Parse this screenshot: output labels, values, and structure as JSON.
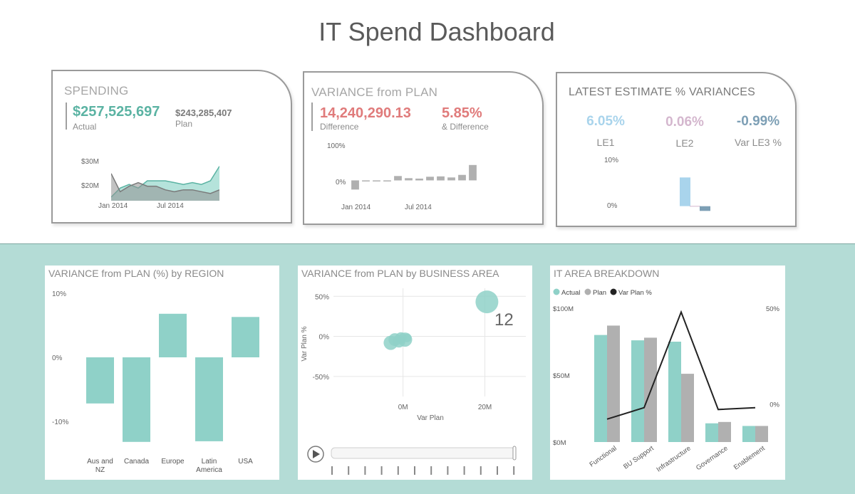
{
  "title": "IT Spend Dashboard",
  "colors": {
    "teal": "#8fd1c8",
    "gray": "#b0b0b0",
    "green_text": "#5bb3a3",
    "red_text": "#e07b7b",
    "le1": "#a9d4ec",
    "le2": "#d4b7ce",
    "le3": "#7d9fb5",
    "dark": "#222222"
  },
  "spending": {
    "title": "SPENDING",
    "actual_value": "$257,525,697",
    "actual_label": "Actual",
    "plan_value": "$243,285,407",
    "plan_label": "Plan",
    "y_ticks": [
      "$30M",
      "$20M"
    ],
    "x_ticks": [
      "Jan 2014",
      "Jul 2014"
    ],
    "chart_data": {
      "type": "area",
      "x": [
        "Dec 2013",
        "Jan 2014",
        "Feb 2014",
        "Mar 2014",
        "Apr 2014",
        "May 2014",
        "Jun 2014",
        "Jul 2014",
        "Aug 2014",
        "Sep 2014",
        "Oct 2014",
        "Nov 2014",
        "Dec 2014"
      ],
      "series": [
        {
          "name": "Actual",
          "values": [
            14,
            19,
            21,
            19,
            23,
            23,
            23,
            22,
            21,
            22,
            21,
            23,
            31
          ]
        },
        {
          "name": "Plan",
          "values": [
            27,
            17,
            20,
            22,
            20,
            20,
            18,
            17,
            18,
            18,
            17,
            16,
            18
          ]
        }
      ],
      "ylim": [
        12,
        34
      ]
    }
  },
  "variance": {
    "title": "VARIANCE from PLAN",
    "difference_value": "14,240,290.13",
    "difference_label": "Difference",
    "pct_value": "5.85%",
    "pct_label": "& Difference",
    "y_ticks": [
      "100%",
      "0%"
    ],
    "x_ticks": [
      "Jan 2014",
      "Jul 2014"
    ],
    "chart_data": {
      "type": "bar",
      "categories": [
        "Jan 2014",
        "Feb 2014",
        "Mar 2014",
        "Apr 2014",
        "May 2014",
        "Jun 2014",
        "Jul 2014",
        "Aug 2014",
        "Sep 2014",
        "Oct 2014",
        "Nov 2014",
        "Dec 2014"
      ],
      "values": [
        -25,
        -3,
        -2,
        -3,
        12,
        6,
        5,
        10,
        11,
        8,
        15,
        42
      ],
      "ylim": [
        -40,
        100
      ]
    }
  },
  "latest": {
    "title": "LATEST ESTIMATE % VARIANCES",
    "items": [
      {
        "value": "6.05%",
        "label": "LE1"
      },
      {
        "value": "0.06%",
        "label": "LE2"
      },
      {
        "value": "-0.99%",
        "label": "Var LE3 %"
      }
    ],
    "y_ticks": [
      "10%",
      "0%"
    ],
    "chart_data": {
      "type": "bar",
      "categories": [
        "LE1",
        "LE2",
        "Var LE3 %"
      ],
      "values": [
        6.05,
        0.06,
        -0.99
      ],
      "ylim": [
        -2,
        10
      ]
    }
  },
  "region": {
    "title": "VARIANCE from PLAN (%) by REGION",
    "y_ticks": [
      "10%",
      "0%",
      "-10%"
    ],
    "chart_data": {
      "type": "bar",
      "categories": [
        "Aus and NZ",
        "Canada",
        "Europe",
        "Latin America",
        "USA"
      ],
      "values": [
        -7.2,
        -13.2,
        6.8,
        -13.1,
        6.3
      ],
      "ylim": [
        -15,
        10
      ]
    }
  },
  "business": {
    "title": "VARIANCE from PLAN by BUSINESS AREA",
    "y_ticks": [
      "50%",
      "0%",
      "-50%"
    ],
    "x_ticks": [
      "0M",
      "20M"
    ],
    "xlabel": "Var Plan",
    "ylabel": "Var Plan %",
    "bubble_label": "12",
    "play_ticks": [
      "1",
      "2",
      "3",
      "4",
      "5",
      "6",
      "7",
      "8",
      "9",
      "10",
      "11",
      "12"
    ],
    "chart_data": {
      "type": "scatter",
      "x": [
        -3,
        -2,
        -1,
        -0.5,
        0.5,
        1,
        20.5
      ],
      "y": [
        -8,
        -4,
        -6,
        -2,
        -4,
        -2,
        43
      ],
      "xlim": [
        -17,
        30
      ],
      "ylim": [
        -75,
        60
      ]
    }
  },
  "breakdown": {
    "title": "IT AREA BREAKDOWN",
    "legend": [
      "Actual",
      "Plan",
      "Var Plan %"
    ],
    "y_left_ticks": [
      "$100M",
      "$50M",
      "$0M"
    ],
    "y_right_ticks": [
      "50%",
      "0%"
    ],
    "chart_data": {
      "type": "bar",
      "categories": [
        "Functional",
        "BU Support",
        "Infrastructure",
        "Governance",
        "Enablement"
      ],
      "series": [
        {
          "name": "Actual",
          "values": [
            80,
            76,
            75,
            14,
            12
          ]
        },
        {
          "name": "Plan",
          "values": [
            87,
            78,
            51,
            15,
            12
          ]
        },
        {
          "name": "Var Plan %",
          "values": [
            -8,
            -2,
            48,
            -3,
            -2
          ]
        }
      ],
      "ylim_left": [
        0,
        100
      ],
      "ylim_right": [
        -20,
        50
      ]
    }
  }
}
